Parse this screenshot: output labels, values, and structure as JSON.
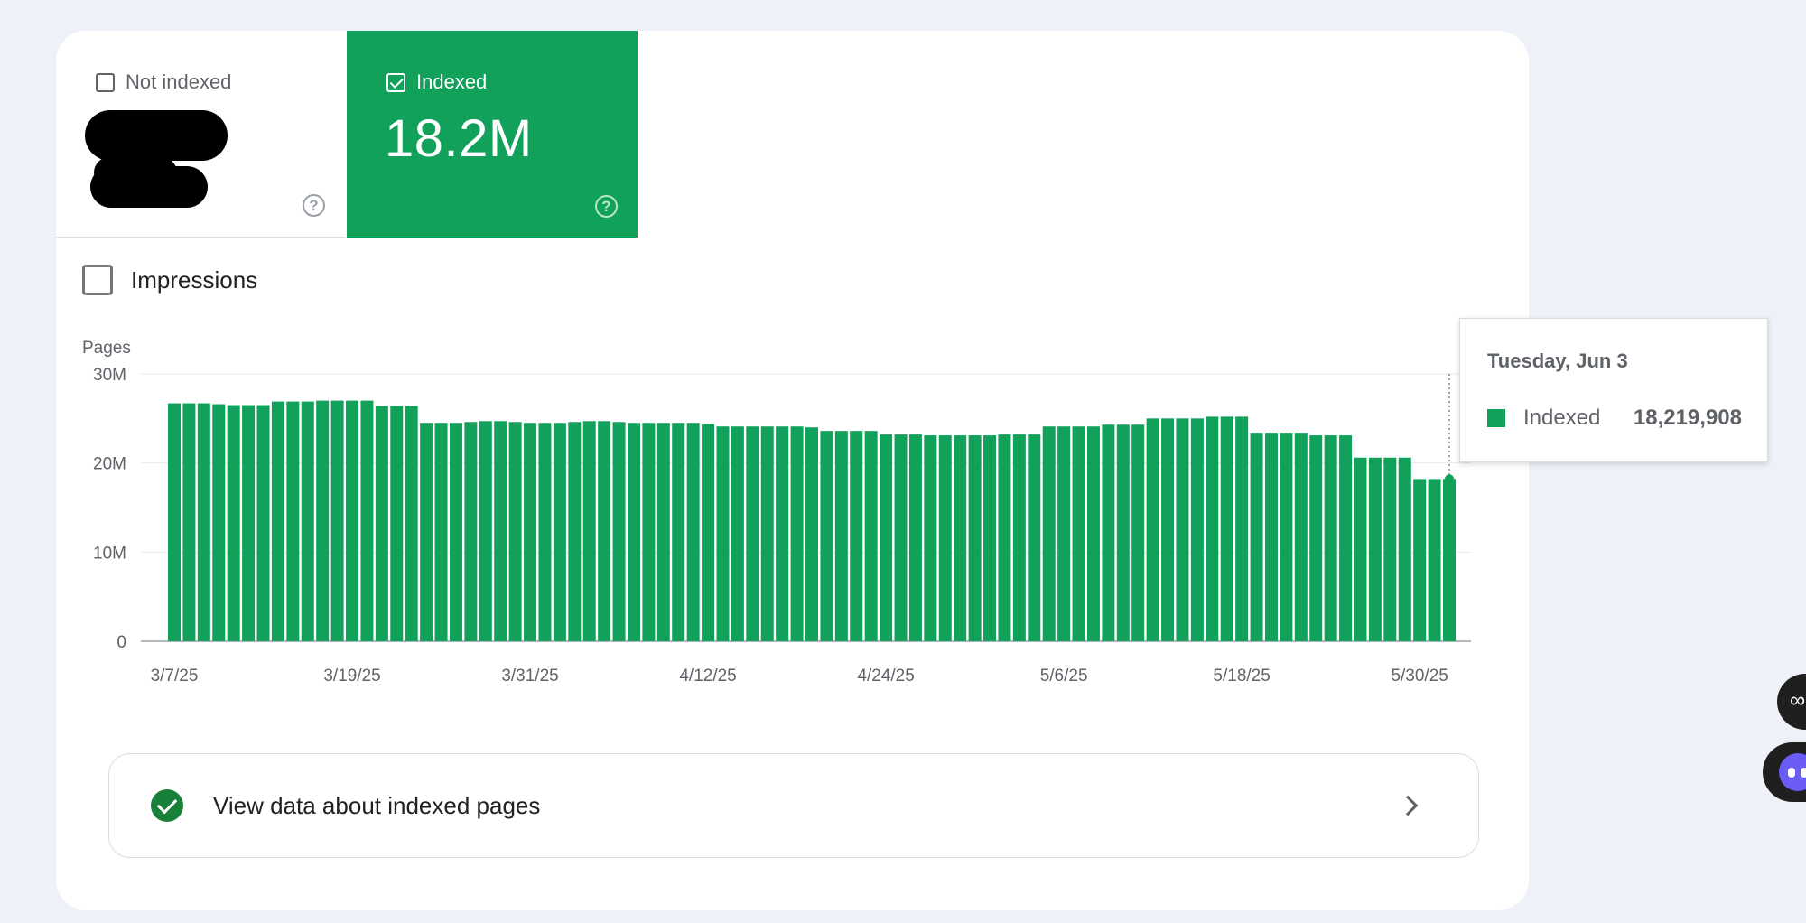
{
  "tiles": {
    "not_indexed": {
      "label": "Not indexed"
    },
    "indexed": {
      "label": "Indexed",
      "value": "18.2M"
    }
  },
  "impressions_label": "Impressions",
  "tooltip": {
    "date": "Tuesday, Jun 3",
    "label": "Indexed",
    "value": "18,219,908"
  },
  "link": {
    "label": "View data about indexed pages"
  },
  "colors": {
    "indexed": "#12a15a",
    "check": "#188038"
  },
  "icons": [
    "checkbox-icon",
    "help-icon",
    "check-circle-icon",
    "chevron-right-icon"
  ],
  "chart_data": {
    "type": "bar",
    "ylabel": "Pages",
    "ylim": [
      0,
      30000000
    ],
    "yticks": [
      "0",
      "10M",
      "20M",
      "30M"
    ],
    "xticks": [
      "3/7/25",
      "3/19/25",
      "3/31/25",
      "4/12/25",
      "4/24/25",
      "5/6/25",
      "5/18/25",
      "5/30/25"
    ],
    "x_start": "3/7/25",
    "x_end": "6/3/25",
    "series": [
      {
        "name": "Indexed",
        "color": "#12a15a",
        "values": [
          26.7,
          26.7,
          26.7,
          26.6,
          26.5,
          26.5,
          26.5,
          26.9,
          26.9,
          26.9,
          27.0,
          27.0,
          27.0,
          27.0,
          26.4,
          26.4,
          26.4,
          24.5,
          24.5,
          24.5,
          24.6,
          24.7,
          24.7,
          24.6,
          24.5,
          24.5,
          24.5,
          24.6,
          24.7,
          24.7,
          24.6,
          24.5,
          24.5,
          24.5,
          24.5,
          24.5,
          24.4,
          24.1,
          24.1,
          24.1,
          24.1,
          24.1,
          24.1,
          24.0,
          23.6,
          23.6,
          23.6,
          23.6,
          23.2,
          23.2,
          23.2,
          23.1,
          23.1,
          23.1,
          23.1,
          23.1,
          23.2,
          23.2,
          23.2,
          24.1,
          24.1,
          24.1,
          24.1,
          24.3,
          24.3,
          24.3,
          25.0,
          25.0,
          25.0,
          25.0,
          25.2,
          25.2,
          25.2,
          23.4,
          23.4,
          23.4,
          23.4,
          23.1,
          23.1,
          23.1,
          20.6,
          20.6,
          20.6,
          20.6,
          18.2,
          18.2,
          18.219908
        ]
      }
    ]
  }
}
